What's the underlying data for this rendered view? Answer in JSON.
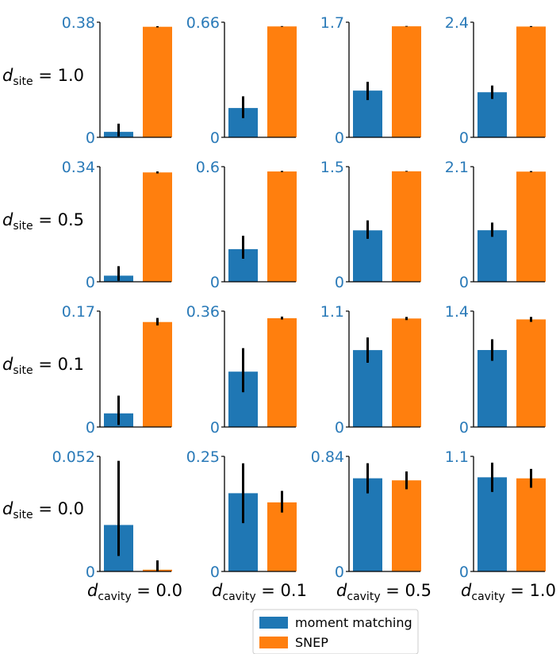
{
  "chart_data": {
    "type": "bar",
    "layout": "4x4 grid of small bar charts",
    "series": [
      {
        "name": "moment matching",
        "color": "#1f77b4"
      },
      {
        "name": "SNEP",
        "color": "#ff7f0e"
      }
    ],
    "row_labels": [
      {
        "var": "d",
        "sub": "site",
        "eq": "= 1.0"
      },
      {
        "var": "d",
        "sub": "site",
        "eq": "= 0.5"
      },
      {
        "var": "d",
        "sub": "site",
        "eq": "= 0.1"
      },
      {
        "var": "d",
        "sub": "site",
        "eq": "= 0.0"
      }
    ],
    "col_labels": [
      {
        "var": "d",
        "sub": "cavity",
        "eq": "= 0.0"
      },
      {
        "var": "d",
        "sub": "cavity",
        "eq": "= 0.1"
      },
      {
        "var": "d",
        "sub": "cavity",
        "eq": "= 0.5"
      },
      {
        "var": "d",
        "sub": "cavity",
        "eq": "= 1.0"
      }
    ],
    "panels": [
      [
        {
          "ymax": 0.38,
          "ymax_label": "0.38",
          "ymin_label": "0",
          "moment_matching": {
            "value": 0.018,
            "err_low": 0.003,
            "err_high": 0.045
          },
          "snep": {
            "value": 0.365,
            "err_low": 0.363,
            "err_high": 0.367
          }
        },
        {
          "ymax": 0.66,
          "ymax_label": "0.66",
          "ymin_label": "0",
          "moment_matching": {
            "value": 0.168,
            "err_low": 0.11,
            "err_high": 0.235
          },
          "snep": {
            "value": 0.636,
            "err_low": 0.634,
            "err_high": 0.638
          }
        },
        {
          "ymax": 1.7,
          "ymax_label": "1.7",
          "ymin_label": "0",
          "moment_matching": {
            "value": 0.69,
            "err_low": 0.55,
            "err_high": 0.82
          },
          "snep": {
            "value": 1.64,
            "err_low": 1.635,
            "err_high": 1.645
          }
        },
        {
          "ymax": 2.4,
          "ymax_label": "2.4",
          "ymin_label": "0",
          "moment_matching": {
            "value": 0.94,
            "err_low": 0.8,
            "err_high": 1.08
          },
          "snep": {
            "value": 2.31,
            "err_low": 2.3,
            "err_high": 2.32
          }
        }
      ],
      [
        {
          "ymax": 0.34,
          "ymax_label": "0.34",
          "ymin_label": "0",
          "moment_matching": {
            "value": 0.018,
            "err_low": 0.003,
            "err_high": 0.046
          },
          "snep": {
            "value": 0.323,
            "err_low": 0.32,
            "err_high": 0.326
          }
        },
        {
          "ymax": 0.6,
          "ymax_label": "0.6",
          "ymin_label": "0",
          "moment_matching": {
            "value": 0.17,
            "err_low": 0.12,
            "err_high": 0.24
          },
          "snep": {
            "value": 0.575,
            "err_low": 0.572,
            "err_high": 0.578
          }
        },
        {
          "ymax": 1.5,
          "ymax_label": "1.5",
          "ymin_label": "0",
          "moment_matching": {
            "value": 0.67,
            "err_low": 0.56,
            "err_high": 0.8
          },
          "snep": {
            "value": 1.44,
            "err_low": 1.435,
            "err_high": 1.445
          }
        },
        {
          "ymax": 2.1,
          "ymax_label": "2.1",
          "ymin_label": "0",
          "moment_matching": {
            "value": 0.94,
            "err_low": 0.82,
            "err_high": 1.08
          },
          "snep": {
            "value": 2.01,
            "err_low": 2.0,
            "err_high": 2.02
          }
        }
      ],
      [
        {
          "ymax": 0.17,
          "ymax_label": "0.17",
          "ymin_label": "0",
          "moment_matching": {
            "value": 0.02,
            "err_low": 0.003,
            "err_high": 0.046
          },
          "snep": {
            "value": 0.154,
            "err_low": 0.149,
            "err_high": 0.16
          }
        },
        {
          "ymax": 0.36,
          "ymax_label": "0.36",
          "ymin_label": "0",
          "moment_matching": {
            "value": 0.172,
            "err_low": 0.108,
            "err_high": 0.245
          },
          "snep": {
            "value": 0.338,
            "err_low": 0.334,
            "err_high": 0.343
          }
        },
        {
          "ymax": 1.1,
          "ymax_label": "1.1",
          "ymin_label": "0",
          "moment_matching": {
            "value": 0.73,
            "err_low": 0.61,
            "err_high": 0.85
          },
          "snep": {
            "value": 1.03,
            "err_low": 1.015,
            "err_high": 1.045
          }
        },
        {
          "ymax": 1.4,
          "ymax_label": "1.4",
          "ymin_label": "0",
          "moment_matching": {
            "value": 0.93,
            "err_low": 0.8,
            "err_high": 1.06
          },
          "snep": {
            "value": 1.3,
            "err_low": 1.27,
            "err_high": 1.33
          }
        }
      ],
      [
        {
          "ymax": 0.052,
          "ymax_label": "0.052",
          "ymin_label": "0",
          "moment_matching": {
            "value": 0.021,
            "err_low": 0.007,
            "err_high": 0.05
          },
          "snep": {
            "value": 0.0008,
            "err_low": 0.0,
            "err_high": 0.005
          }
        },
        {
          "ymax": 0.25,
          "ymax_label": "0.25",
          "ymin_label": "0",
          "moment_matching": {
            "value": 0.17,
            "err_low": 0.105,
            "err_high": 0.235
          },
          "snep": {
            "value": 0.15,
            "err_low": 0.128,
            "err_high": 0.175
          }
        },
        {
          "ymax": 0.84,
          "ymax_label": "0.84",
          "ymin_label": "0",
          "moment_matching": {
            "value": 0.68,
            "err_low": 0.57,
            "err_high": 0.79
          },
          "snep": {
            "value": 0.665,
            "err_low": 0.6,
            "err_high": 0.73
          }
        },
        {
          "ymax": 1.1,
          "ymax_label": "1.1",
          "ymin_label": "0",
          "moment_matching": {
            "value": 0.9,
            "err_low": 0.76,
            "err_high": 1.04
          },
          "snep": {
            "value": 0.89,
            "err_low": 0.8,
            "err_high": 0.98
          }
        }
      ]
    ],
    "legend": {
      "position": "bottom-center",
      "entries": [
        {
          "label": "moment matching",
          "color": "#1f77b4"
        },
        {
          "label": "SNEP",
          "color": "#ff7f0e"
        }
      ]
    },
    "tick_color": "#2a7ab8",
    "axis_color": "#000000"
  }
}
